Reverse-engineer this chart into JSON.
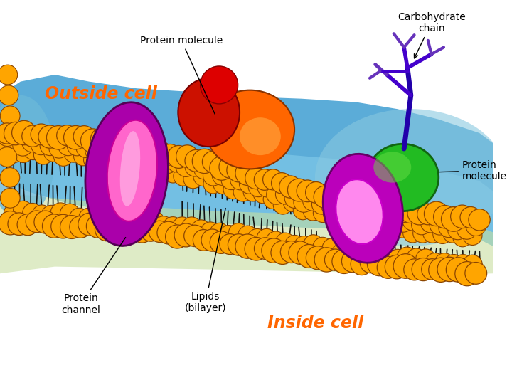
{
  "background_color": "#ffffff",
  "figure_size": [
    7.2,
    5.48
  ],
  "dpi": 100,
  "phospholipid_color": "#FFA500",
  "phospholipid_outline": "#8B4500",
  "tail_color": "#111111",
  "labels": {
    "outside_cell": {
      "text": "Outside cell",
      "color": "#FF6600",
      "fontsize": 17,
      "style": "italic",
      "weight": "bold"
    },
    "inside_cell": {
      "text": "Inside cell",
      "color": "#FF6600",
      "fontsize": 17,
      "style": "italic",
      "weight": "bold"
    },
    "protein_molecule_top": {
      "text": "Protein molecule",
      "color": "#000000",
      "fontsize": 10
    },
    "protein_molecule_right": {
      "text": "Protein\nmolecule",
      "color": "#000000",
      "fontsize": 10
    },
    "carbohydrate_chain": {
      "text": "Carbohydrate\nchain",
      "color": "#000000",
      "fontsize": 10
    },
    "protein_channel": {
      "text": "Protein\nchannel",
      "color": "#000000",
      "fontsize": 10
    },
    "lipids_bilayer": {
      "text": "Lipids\n(bilayer)",
      "color": "#000000",
      "fontsize": 10
    }
  }
}
